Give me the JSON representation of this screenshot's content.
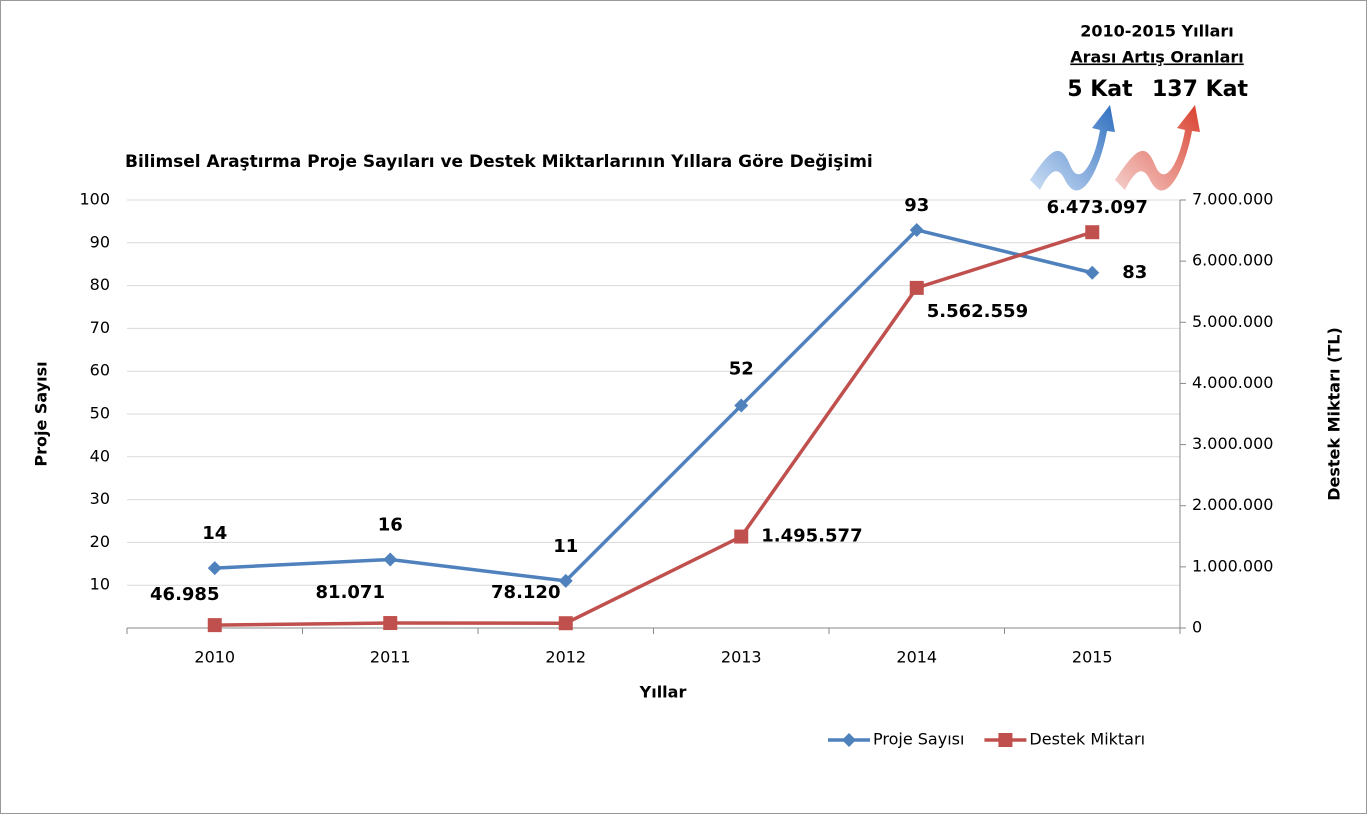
{
  "chart_data": {
    "type": "line",
    "title": "Bilimsel Araştırma Proje Sayıları ve Destek Miktarlarının Yıllara Göre Değişimi",
    "x_label": "Yıllar",
    "y_label": "Proje Sayısı",
    "y2_label": "Destek Miktarı (TL)",
    "annotation": {
      "title": "2010-2015 Yılları",
      "subtitle": "Arası Artış Oranları",
      "labels": [
        "5 Kat",
        "137 Kat"
      ]
    },
    "categories": [
      "2010",
      "2011",
      "2012",
      "2013",
      "2014",
      "2015"
    ],
    "series": [
      {
        "name": "Proje Sayısı",
        "color": "#4f81bd",
        "marker": "diamond",
        "values": [
          14,
          16,
          11,
          52,
          93,
          83
        ]
      },
      {
        "name": "Destek Miktarı",
        "color": "#c0504d",
        "marker": "square",
        "axis": "y2",
        "values": [
          46985,
          81071,
          78120,
          1495577,
          5562559,
          6473097
        ],
        "value_labels": [
          "46.985",
          "81.071",
          "78.120",
          "1.495.577",
          "5.562.559",
          "6.473.097"
        ]
      }
    ],
    "ylim": [
      0,
      100
    ],
    "yticks": [
      10,
      20,
      30,
      40,
      50,
      60,
      70,
      80,
      90,
      100
    ],
    "y2lim": [
      0,
      7000000
    ],
    "y2ticks": [
      0,
      {
        "value": 1000000,
        "label": "1.000.000"
      },
      {
        "value": 2000000,
        "label": "2.000.000"
      },
      {
        "value": 3000000,
        "label": "3.000.000"
      },
      {
        "value": 4000000,
        "label": "4.000.000"
      },
      {
        "value": 5000000,
        "label": "5.000.000"
      },
      {
        "value": 6000000,
        "label": "6.000.000"
      },
      {
        "value": 7000000,
        "label": "7.000.000"
      }
    ],
    "grid": true,
    "legend": "bottom-right"
  }
}
